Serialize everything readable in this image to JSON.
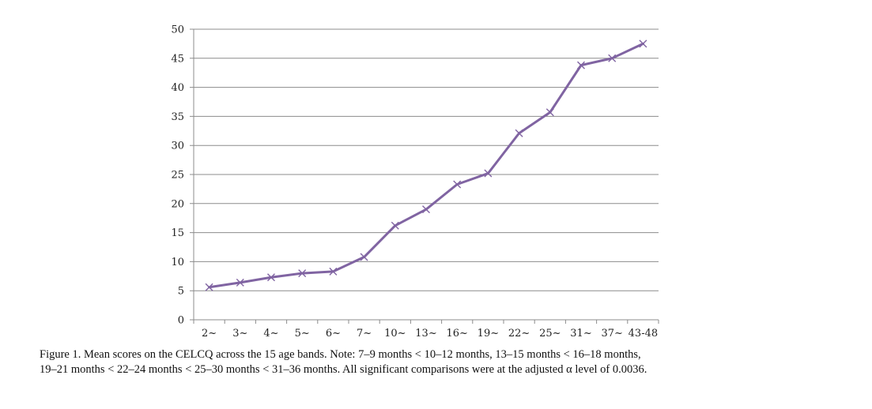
{
  "chart_data": {
    "type": "line",
    "title": "",
    "xlabel": "",
    "ylabel": "",
    "categories": [
      "2~",
      "3~",
      "4~",
      "5~",
      "6~",
      "7~",
      "10~",
      "13~",
      "16~",
      "19~",
      "22~",
      "25~",
      "31~",
      "37~",
      "43-48"
    ],
    "series": [
      {
        "values": [
          5.6,
          6.4,
          7.3,
          8.0,
          8.3,
          10.8,
          16.2,
          19.0,
          23.3,
          25.2,
          32.1,
          35.7,
          43.8,
          45.0,
          47.5
        ],
        "color": "#8064A2",
        "marker": "x"
      }
    ],
    "ylim": [
      0,
      50
    ],
    "yticks": [
      0,
      5,
      10,
      15,
      20,
      25,
      30,
      35,
      40,
      45,
      50
    ],
    "grid": true,
    "legend": "none"
  },
  "caption": {
    "line1": "Figure 1. Mean scores on the CELCQ across the 15 age bands. Note: 7–9 months < 10–12 months, 13–15 months < 16–18 months,",
    "line2": "19–21 months < 22–24 months < 25–30 months < 31–36 months. All significant comparisons were at the adjusted α level of 0.0036."
  }
}
